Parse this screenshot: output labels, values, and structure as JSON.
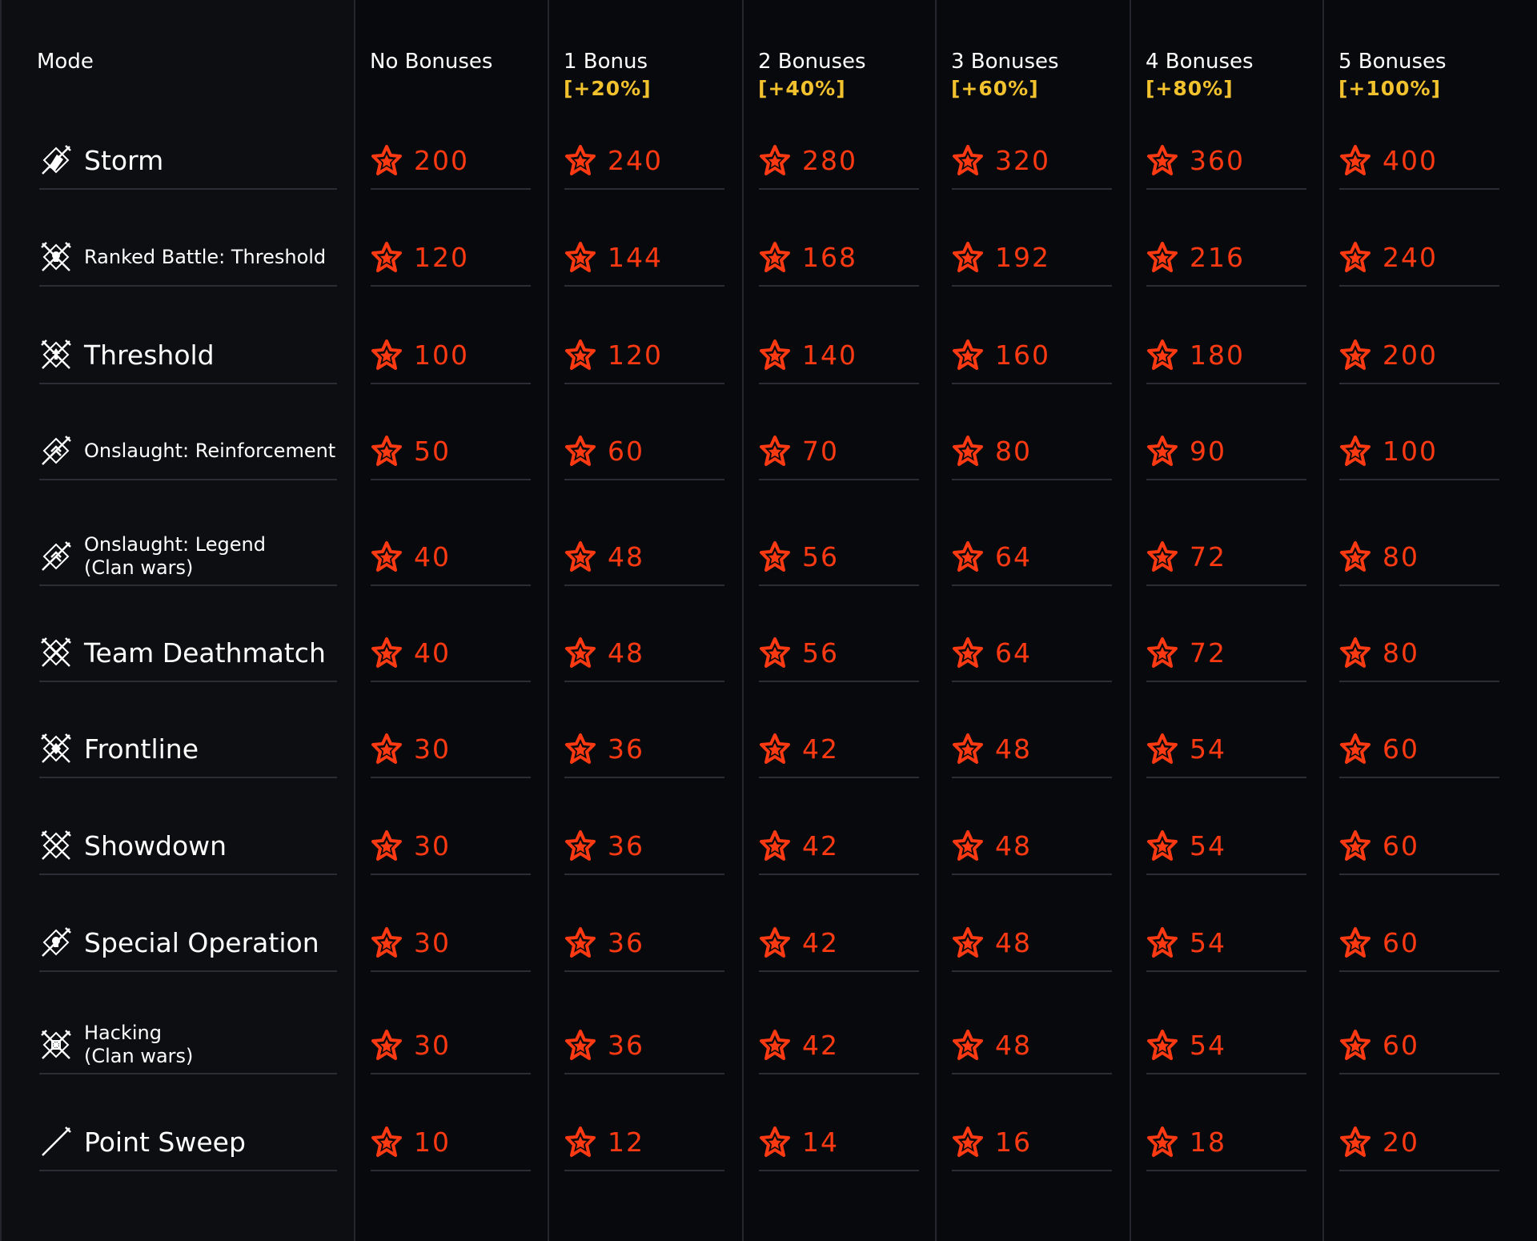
{
  "colors": {
    "background": "#08090c",
    "reward": "#ff3a12",
    "bonus_percent": "#f2c12e",
    "text": "#ffffff"
  },
  "header": {
    "mode_label": "Mode",
    "columns": [
      {
        "label": "No Bonuses",
        "percent": ""
      },
      {
        "label": "1 Bonus",
        "percent": "[+20%]"
      },
      {
        "label": "2 Bonuses",
        "percent": "[+40%]"
      },
      {
        "label": "3 Bonuses",
        "percent": "[+60%]"
      },
      {
        "label": "4 Bonuses",
        "percent": "[+80%]"
      },
      {
        "label": "5 Bonuses",
        "percent": "[+100%]"
      }
    ]
  },
  "reward_icon": "star-icon",
  "rows": [
    {
      "mode": "Storm",
      "icon": "storm-icon",
      "values": [
        "200",
        "240",
        "280",
        "320",
        "360",
        "400"
      ]
    },
    {
      "mode": "Ranked Battle: Threshold",
      "icon": "skull-crossed-swords-icon",
      "values": [
        "120",
        "144",
        "168",
        "192",
        "216",
        "240"
      ]
    },
    {
      "mode": "Threshold",
      "icon": "threshold-icon",
      "values": [
        "100",
        "120",
        "140",
        "160",
        "180",
        "200"
      ]
    },
    {
      "mode": "Onslaught: Reinforcement",
      "icon": "onslaught-icon",
      "values": [
        "50",
        "60",
        "70",
        "80",
        "90",
        "100"
      ]
    },
    {
      "mode": "Onslaught: Legend\n(Clan wars)",
      "icon": "onslaught-icon",
      "values": [
        "40",
        "48",
        "56",
        "64",
        "72",
        "80"
      ]
    },
    {
      "mode": "Team Deathmatch",
      "icon": "team-deathmatch-icon",
      "values": [
        "40",
        "48",
        "56",
        "64",
        "72",
        "80"
      ]
    },
    {
      "mode": "Frontline",
      "icon": "frontline-icon",
      "values": [
        "30",
        "36",
        "42",
        "48",
        "54",
        "60"
      ]
    },
    {
      "mode": "Showdown",
      "icon": "showdown-icon",
      "values": [
        "30",
        "36",
        "42",
        "48",
        "54",
        "60"
      ]
    },
    {
      "mode": "Special Operation",
      "icon": "special-operation-icon",
      "values": [
        "30",
        "36",
        "42",
        "48",
        "54",
        "60"
      ]
    },
    {
      "mode": "Hacking\n(Clan wars)",
      "icon": "hacking-icon",
      "values": [
        "30",
        "36",
        "42",
        "48",
        "54",
        "60"
      ]
    },
    {
      "mode": "Point Sweep",
      "icon": "point-sweep-icon",
      "values": [
        "10",
        "12",
        "14",
        "16",
        "18",
        "20"
      ]
    }
  ]
}
